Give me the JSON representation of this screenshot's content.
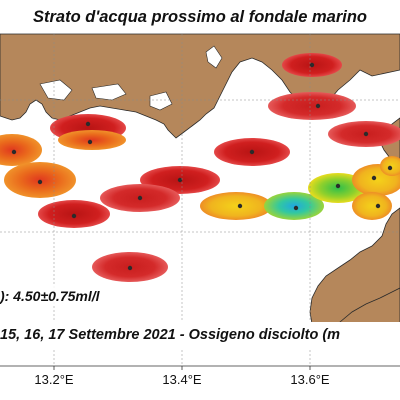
{
  "title": "Strato d'acqua prossimo al fondale marino",
  "mean_label": "): 4.50±0.75ml/l",
  "date_line": "15, 16, 17  Settembre 2021 - Ossigeno disciolto (m",
  "longitude_labels": [
    "13.2°E",
    "13.4°E",
    "13.6°E"
  ],
  "colors": {
    "land": "#b5875b",
    "coast": "#2a2a2a",
    "grid": "#8a8a8a",
    "high": "#d42a2a",
    "mid": "#e8621e",
    "low_green": "#2fbf4a",
    "low_cyan": "#2cb8d8",
    "yellow": "#f2d71e"
  }
}
